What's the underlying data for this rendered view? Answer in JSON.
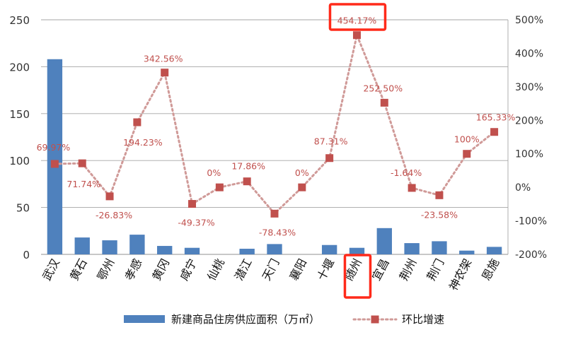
{
  "chart_data": {
    "type": "bar+line",
    "categories": [
      "武汉",
      "黄石",
      "鄂州",
      "孝感",
      "黄冈",
      "咸宁",
      "仙桃",
      "潜江",
      "天门",
      "襄阳",
      "十堰",
      "随州",
      "宜昌",
      "荆州",
      "荆门",
      "神农架",
      "恩施"
    ],
    "series": [
      {
        "name": "新建商品住房供应面积（万㎡）",
        "type": "bar",
        "axis": "left",
        "color": "#4f81bd",
        "values": [
          208,
          18,
          15,
          21,
          9,
          7,
          0,
          6,
          11,
          0,
          10,
          7,
          28,
          12,
          14,
          4,
          8
        ]
      },
      {
        "name": "环比增速",
        "type": "line",
        "axis": "right",
        "color": "#c0504d",
        "values": [
          69.97,
          71.74,
          -26.83,
          194.23,
          342.56,
          -49.37,
          0,
          17.86,
          -78.43,
          0,
          87.31,
          454.17,
          252.5,
          -1.64,
          -23.58,
          100,
          165.33
        ],
        "labels": [
          "69.97%",
          "71.74%",
          "-26.83%",
          "194.23%",
          "342.56%",
          "-49.37%",
          "0%",
          "17.86%",
          "-78.43%",
          "0%",
          "87.31%",
          "454.17%",
          "252.50%",
          "-1.64%",
          "-23.58%",
          "100%",
          "165.33%"
        ]
      }
    ],
    "y_left": {
      "min": 0,
      "max": 250,
      "ticks": [
        "0",
        "50",
        "100",
        "150",
        "200",
        "250"
      ]
    },
    "y_right": {
      "min": -200,
      "max": 500,
      "ticks": [
        "-200%",
        "-100%",
        "0%",
        "100%",
        "200%",
        "300%",
        "400%",
        "500%"
      ]
    },
    "grid": true,
    "legend_position": "bottom",
    "highlighted": [
      "454.17%",
      "随州"
    ],
    "highlight_color": "#ff2a1a"
  }
}
